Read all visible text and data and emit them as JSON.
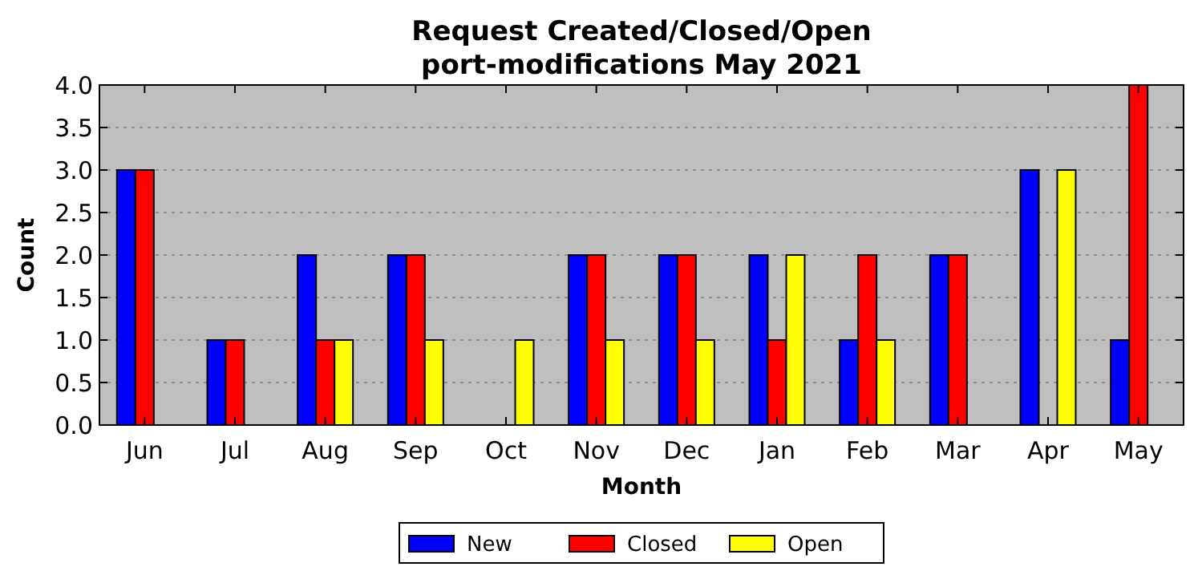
{
  "chart_data": {
    "type": "bar",
    "title": "Request Created/Closed/Open\nport-modifications May 2021",
    "xlabel": "Month",
    "ylabel": "Count",
    "categories": [
      "Jun",
      "Jul",
      "Aug",
      "Sep",
      "Oct",
      "Nov",
      "Dec",
      "Jan",
      "Feb",
      "Mar",
      "Apr",
      "May"
    ],
    "series": [
      {
        "name": "New",
        "color": "#0000ff",
        "values": [
          3,
          1,
          2,
          2,
          0,
          2,
          2,
          2,
          1,
          2,
          3,
          1
        ]
      },
      {
        "name": "Closed",
        "color": "#ff0000",
        "values": [
          3,
          1,
          1,
          2,
          0,
          2,
          2,
          1,
          2,
          2,
          0,
          4
        ]
      },
      {
        "name": "Open",
        "color": "#ffff00",
        "values": [
          0,
          0,
          1,
          1,
          1,
          1,
          1,
          2,
          1,
          0,
          3,
          0
        ]
      }
    ],
    "ylim": [
      0,
      4
    ],
    "yticks": [
      {
        "value": 0,
        "label": "0.0"
      },
      {
        "value": 0.5,
        "label": "0.5"
      },
      {
        "value": 1,
        "label": "1.0"
      },
      {
        "value": 1.5,
        "label": "1.5"
      },
      {
        "value": 2,
        "label": "2.0"
      },
      {
        "value": 2.5,
        "label": "2.5"
      },
      {
        "value": 3,
        "label": "3.0"
      },
      {
        "value": 3.5,
        "label": "3.5"
      },
      {
        "value": 4,
        "label": "4.0"
      }
    ],
    "grid": "y",
    "legend": "bottom"
  }
}
